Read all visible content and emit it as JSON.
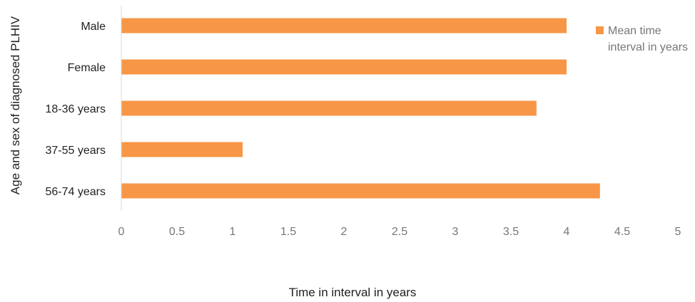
{
  "chart_data": {
    "type": "bar",
    "orientation": "horizontal",
    "categories": [
      "Male",
      "Female",
      "18-36 years",
      "37-55 years",
      "56-74 years"
    ],
    "series": [
      {
        "name": "Mean time interval in years",
        "values": [
          4.0,
          4.0,
          3.73,
          1.09,
          4.3
        ],
        "color": "#F79646"
      }
    ],
    "xlabel": "Time in interval in years",
    "ylabel": "Age and sex of diagnosed PLHIV",
    "xlim": [
      0,
      5
    ],
    "xticks": [
      "0",
      "0.5",
      "1",
      "1.5",
      "2",
      "2.5",
      "3",
      "3.5",
      "4",
      "4.5",
      "5"
    ],
    "grid": false,
    "legend": {
      "position": "top-right",
      "lines": [
        "Mean time",
        "interval in years"
      ]
    },
    "axis_color": "#D9D9D9"
  }
}
